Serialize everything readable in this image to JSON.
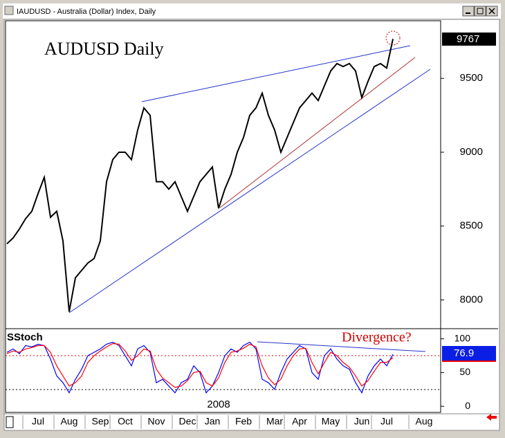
{
  "window": {
    "title": "IAUDUSD - Australia (Dollar) Index, Daily"
  },
  "chart_data": [
    {
      "type": "line",
      "title": "AUDUSD Daily",
      "year_label": "2008",
      "categories": [
        null,
        null,
        null,
        null,
        null,
        "Jul",
        null,
        null,
        null,
        null,
        "Aug",
        null,
        null,
        null,
        null,
        "Sep",
        null,
        null,
        null,
        "Oct",
        null,
        null,
        null,
        null,
        "Nov",
        null,
        null,
        null,
        null,
        "Dec",
        null,
        null,
        null,
        "Jan",
        null,
        null,
        null,
        null,
        "Feb",
        null,
        null,
        null,
        null,
        "Mar",
        null,
        null,
        null,
        "Apr",
        null,
        null,
        null,
        null,
        "May",
        null,
        null,
        null,
        null,
        "Jun",
        null,
        null,
        null,
        "Jul",
        null,
        null,
        null,
        null,
        null,
        "Aug",
        null,
        null
      ],
      "series": [
        {
          "color": "#000000",
          "values": [
            8380,
            8420,
            8480,
            8550,
            8600,
            8720,
            8830,
            8560,
            8600,
            8400,
            7920,
            8150,
            8200,
            8250,
            8280,
            8400,
            8800,
            8950,
            9000,
            9000,
            8950,
            9150,
            9300,
            9250,
            8800,
            8800,
            8750,
            8800,
            8700,
            8600,
            8700,
            8800,
            8850,
            8900,
            8620,
            8750,
            8850,
            9000,
            9100,
            9250,
            9300,
            9400,
            9250,
            9150,
            9000,
            9100,
            9200,
            9300,
            9350,
            9400,
            9350,
            9450,
            9550,
            9600,
            9580,
            9600,
            9550,
            9370,
            9480,
            9580,
            9600,
            9570,
            9767,
            null,
            null,
            null,
            null,
            null,
            null,
            null
          ]
        }
      ],
      "ylim": [
        7810,
        9890
      ],
      "yticks": [
        8000,
        8500,
        9000,
        9500
      ]
    },
    {
      "type": "line",
      "title": "SStoch",
      "annotation": "Divergence?",
      "series": [
        {
          "color": "#0000ff",
          "values": [
            80,
            85,
            78,
            90,
            88,
            92,
            90,
            70,
            45,
            35,
            20,
            40,
            55,
            75,
            80,
            85,
            92,
            95,
            90,
            75,
            60,
            85,
            90,
            80,
            35,
            40,
            30,
            20,
            35,
            40,
            60,
            50,
            20,
            30,
            50,
            75,
            85,
            80,
            90,
            95,
            85,
            40,
            35,
            25,
            50,
            70,
            80,
            90,
            85,
            50,
            40,
            75,
            85,
            70,
            60,
            55,
            35,
            20,
            45,
            60,
            70,
            60,
            76.9,
            null,
            null,
            null,
            null,
            null,
            null,
            null
          ]
        },
        {
          "color": "#ff0000",
          "values": [
            78,
            82,
            80,
            85,
            87,
            90,
            90,
            80,
            60,
            45,
            30,
            35,
            45,
            65,
            75,
            82,
            88,
            93,
            92,
            82,
            68,
            75,
            85,
            82,
            55,
            42,
            35,
            28,
            30,
            38,
            50,
            52,
            35,
            30,
            42,
            65,
            80,
            82,
            86,
            92,
            88,
            60,
            42,
            32,
            40,
            60,
            75,
            85,
            86,
            65,
            48,
            65,
            80,
            75,
            65,
            58,
            45,
            30,
            38,
            52,
            65,
            65,
            72,
            null,
            null,
            null,
            null,
            null,
            null,
            null
          ]
        }
      ],
      "ylim": [
        -7,
        114
      ],
      "yticks": [
        0,
        50,
        100
      ]
    }
  ]
}
